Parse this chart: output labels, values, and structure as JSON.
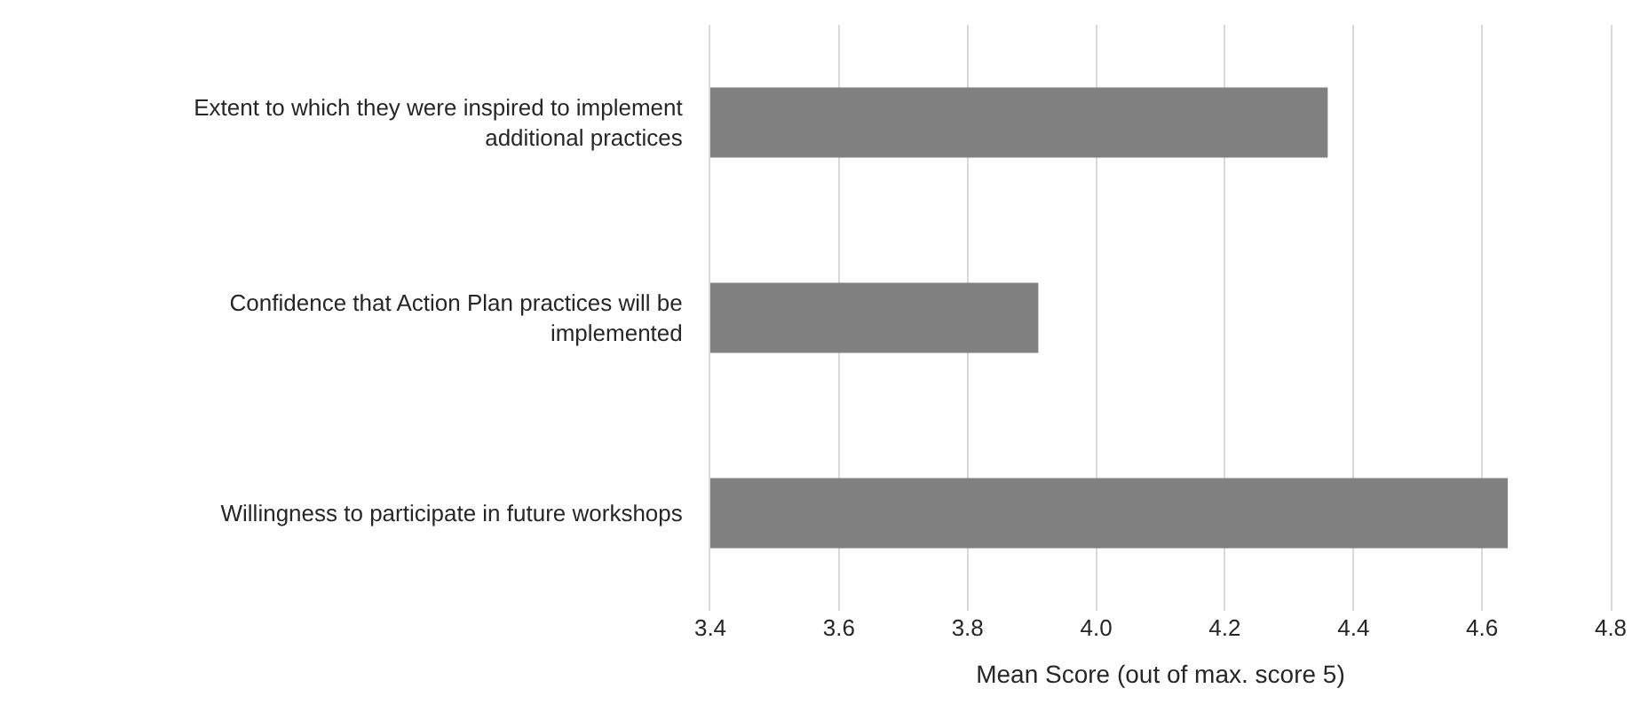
{
  "chart_data": {
    "type": "bar",
    "orientation": "horizontal",
    "xlabel": "Mean Score (out of max. score 5)",
    "categories": [
      "Extent to which they were inspired to implement additional practices",
      "Confidence that Action Plan practices will be implemented",
      "Willingness to participate in future workshops"
    ],
    "values": [
      4.36,
      3.91,
      4.64
    ],
    "color": "#808080",
    "xlim": [
      3.4,
      4.8
    ],
    "xticks": [
      3.4,
      3.6,
      3.8,
      {
        "value": 4,
        "label": "4.0"
      },
      4.2,
      4.4,
      4.6,
      4.8
    ],
    "grid": "x",
    "legend": false
  }
}
